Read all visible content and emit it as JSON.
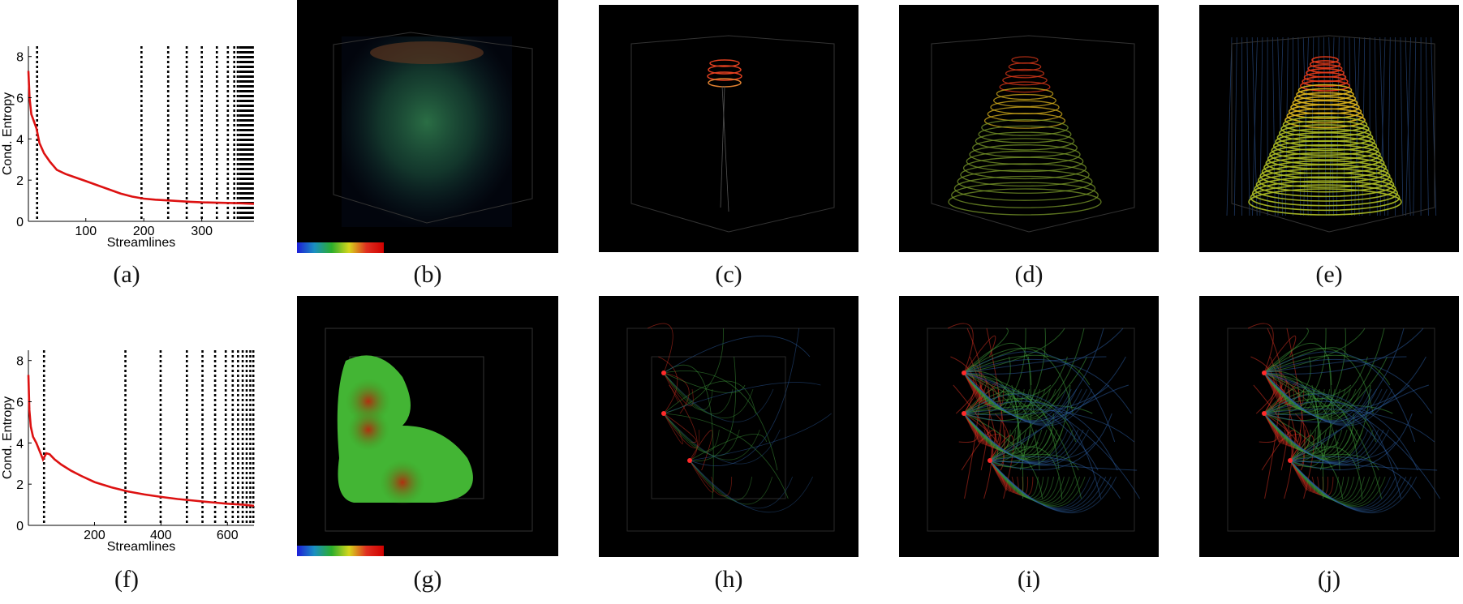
{
  "figure": {
    "captions": [
      "(a)",
      "(b)",
      "(c)",
      "(d)",
      "(e)",
      "(f)",
      "(g)",
      "(h)",
      "(i)",
      "(j)"
    ]
  },
  "chart_data": [
    {
      "type": "line",
      "panel": "(a)",
      "xlabel": "Streamlines",
      "ylabel": "Cond. Entropy",
      "xlim": [
        1,
        390
      ],
      "ylim": [
        0,
        8.5
      ],
      "xticks": [
        100,
        200,
        300
      ],
      "yticks": [
        0,
        2,
        4,
        6,
        8
      ],
      "grid": false,
      "series": [
        {
          "color": "#dd1111",
          "x": [
            1,
            3,
            6,
            10,
            15,
            20,
            28,
            38,
            50,
            65,
            80,
            100,
            120,
            140,
            160,
            180,
            200,
            220,
            250,
            280,
            300,
            330,
            360,
            390
          ],
          "y": [
            7.3,
            6.0,
            5.2,
            4.9,
            4.5,
            3.8,
            3.3,
            2.9,
            2.5,
            2.3,
            2.15,
            1.95,
            1.75,
            1.55,
            1.35,
            1.2,
            1.1,
            1.05,
            1.0,
            0.95,
            0.92,
            0.9,
            0.88,
            0.85
          ]
        }
      ],
      "dashed_verticals": [
        16,
        196,
        242,
        274,
        300,
        326,
        345,
        356,
        362,
        366,
        369,
        372,
        374,
        376,
        378,
        380,
        382,
        384,
        386,
        388
      ]
    },
    {
      "type": "line",
      "panel": "(f)",
      "xlabel": "Streamlines",
      "ylabel": "Cond. Entropy",
      "xlim": [
        1,
        680
      ],
      "ylim": [
        0,
        8.5
      ],
      "xticks": [
        200,
        400,
        600
      ],
      "yticks": [
        0,
        2,
        4,
        6,
        8
      ],
      "grid": false,
      "series": [
        {
          "color": "#dd1111",
          "x": [
            1,
            4,
            8,
            15,
            25,
            35,
            45,
            55,
            65,
            80,
            100,
            130,
            160,
            200,
            250,
            300,
            350,
            400,
            450,
            500,
            550,
            600,
            650,
            680
          ],
          "y": [
            7.3,
            5.6,
            4.8,
            4.3,
            4.0,
            3.6,
            3.2,
            3.5,
            3.45,
            3.2,
            2.95,
            2.65,
            2.4,
            2.1,
            1.85,
            1.65,
            1.5,
            1.38,
            1.28,
            1.2,
            1.12,
            1.05,
            1.0,
            0.95
          ]
        }
      ],
      "dashed_verticals": [
        48,
        293,
        399,
        478,
        525,
        563,
        595,
        616,
        632,
        646,
        658,
        669,
        678
      ]
    }
  ]
}
